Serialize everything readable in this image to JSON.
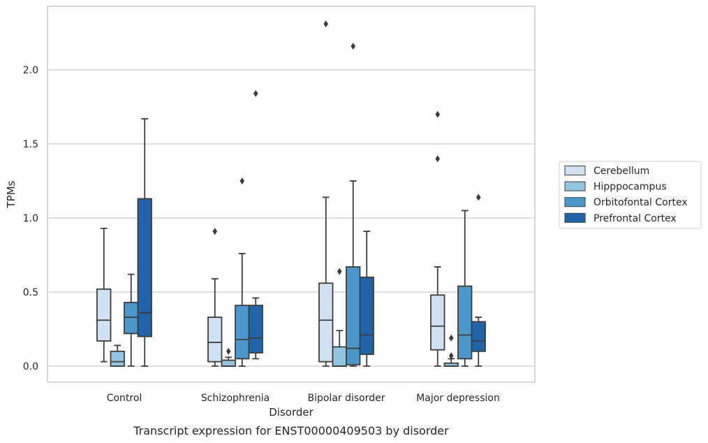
{
  "chart_data": {
    "type": "box",
    "caption": "Transcript expression for ENST00000409503 by disorder",
    "xlabel": "Disorder",
    "ylabel": "TPMs",
    "ylim": [
      -0.11,
      2.43
    ],
    "yticks": [
      "0.0",
      "0.5",
      "1.0",
      "1.5",
      "2.0"
    ],
    "grid": "horizontal",
    "legend_position": "right",
    "categories": [
      "Control",
      "Schizophrenia",
      "Bipolar disorder",
      "Major depression"
    ],
    "series": [
      {
        "name": "Cerebellum",
        "color": "#d0e1f2",
        "boxes": [
          {
            "whislo": 0.03,
            "q1": 0.17,
            "med": 0.31,
            "q3": 0.52,
            "whishi": 0.93,
            "fliers": []
          },
          {
            "whislo": 0.0,
            "q1": 0.03,
            "med": 0.16,
            "q3": 0.33,
            "whishi": 0.59,
            "fliers": [
              0.91
            ]
          },
          {
            "whislo": 0.0,
            "q1": 0.03,
            "med": 0.31,
            "q3": 0.56,
            "whishi": 1.14,
            "fliers": [
              2.31
            ]
          },
          {
            "whislo": 0.0,
            "q1": 0.11,
            "med": 0.27,
            "q3": 0.48,
            "whishi": 0.67,
            "fliers": [
              1.4,
              1.7
            ]
          }
        ]
      },
      {
        "name": "Hipppocampus",
        "color": "#94c4df",
        "boxes": [
          {
            "whislo": 0.0,
            "q1": 0.0,
            "med": 0.03,
            "q3": 0.1,
            "whishi": 0.14,
            "fliers": []
          },
          {
            "whislo": 0.0,
            "q1": 0.0,
            "med": 0.0,
            "q3": 0.04,
            "whishi": 0.06,
            "fliers": [
              0.1
            ]
          },
          {
            "whislo": 0.0,
            "q1": 0.0,
            "med": 0.0,
            "q3": 0.13,
            "whishi": 0.24,
            "fliers": [
              0.64
            ]
          },
          {
            "whislo": 0.0,
            "q1": 0.0,
            "med": 0.0,
            "q3": 0.02,
            "whishi": 0.05,
            "fliers": [
              0.07,
              0.19
            ]
          }
        ]
      },
      {
        "name": "Orbitofontal Cortex",
        "color": "#4a98c9",
        "boxes": [
          {
            "whislo": 0.0,
            "q1": 0.22,
            "med": 0.33,
            "q3": 0.43,
            "whishi": 0.62,
            "fliers": []
          },
          {
            "whislo": 0.0,
            "q1": 0.05,
            "med": 0.18,
            "q3": 0.41,
            "whishi": 0.76,
            "fliers": [
              1.25
            ]
          },
          {
            "whislo": 0.0,
            "q1": 0.01,
            "med": 0.12,
            "q3": 0.67,
            "whishi": 1.25,
            "fliers": [
              2.16
            ]
          },
          {
            "whislo": 0.0,
            "q1": 0.05,
            "med": 0.21,
            "q3": 0.54,
            "whishi": 1.05,
            "fliers": []
          }
        ]
      },
      {
        "name": "Prefrontal Cortex",
        "color": "#2164ab",
        "boxes": [
          {
            "whislo": 0.0,
            "q1": 0.2,
            "med": 0.36,
            "q3": 1.13,
            "whishi": 1.67,
            "fliers": []
          },
          {
            "whislo": 0.05,
            "q1": 0.09,
            "med": 0.19,
            "q3": 0.41,
            "whishi": 0.46,
            "fliers": [
              1.84
            ]
          },
          {
            "whislo": 0.0,
            "q1": 0.08,
            "med": 0.21,
            "q3": 0.6,
            "whishi": 0.91,
            "fliers": []
          },
          {
            "whislo": 0.0,
            "q1": 0.1,
            "med": 0.17,
            "q3": 0.3,
            "whishi": 0.33,
            "fliers": [
              1.14
            ]
          }
        ]
      }
    ]
  }
}
